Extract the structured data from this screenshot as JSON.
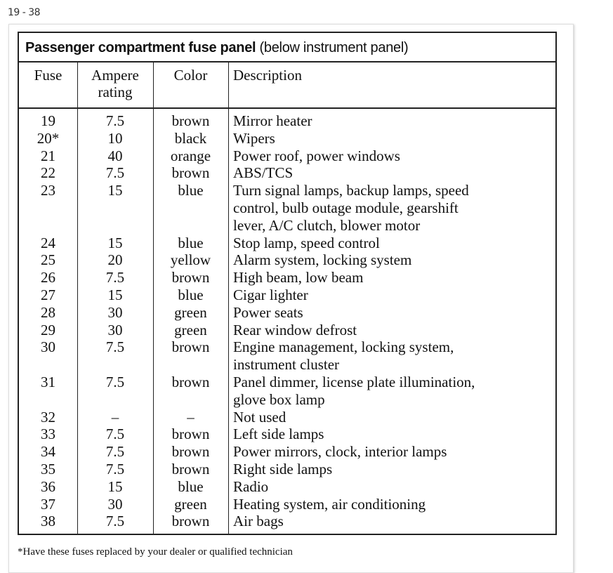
{
  "page_label": "19 - 38",
  "table": {
    "title_bold": "Passenger compartment fuse panel",
    "title_rest": " (below instrument panel)",
    "headers": {
      "fuse": "Fuse",
      "ampere_line1": "Ampere",
      "ampere_line2": "rating",
      "color": "Color",
      "description": "Description"
    },
    "rows": [
      {
        "fuse": "19",
        "amp": "7.5",
        "color": "brown",
        "desc": [
          "Mirror heater"
        ]
      },
      {
        "fuse": "20*",
        "amp": "10",
        "color": "black",
        "desc": [
          "Wipers"
        ]
      },
      {
        "fuse": "21",
        "amp": "40",
        "color": "orange",
        "desc": [
          "Power roof, power windows"
        ]
      },
      {
        "fuse": "22",
        "amp": "7.5",
        "color": "brown",
        "desc": [
          "ABS/TCS"
        ]
      },
      {
        "fuse": "23",
        "amp": "15",
        "color": "blue",
        "desc": [
          "Turn signal lamps, backup lamps, speed",
          "control, bulb outage module, gearshift",
          "lever, A/C clutch, blower motor"
        ]
      },
      {
        "fuse": "24",
        "amp": "15",
        "color": "blue",
        "desc": [
          "Stop lamp, speed control"
        ]
      },
      {
        "fuse": "25",
        "amp": "20",
        "color": "yellow",
        "desc": [
          "Alarm system, locking system"
        ]
      },
      {
        "fuse": "26",
        "amp": "7.5",
        "color": "brown",
        "desc": [
          "High beam, low beam"
        ]
      },
      {
        "fuse": "27",
        "amp": "15",
        "color": "blue",
        "desc": [
          "Cigar lighter"
        ]
      },
      {
        "fuse": "28",
        "amp": "30",
        "color": "green",
        "desc": [
          "Power seats"
        ]
      },
      {
        "fuse": "29",
        "amp": "30",
        "color": "green",
        "desc": [
          "Rear window defrost"
        ]
      },
      {
        "fuse": "30",
        "amp": "7.5",
        "color": "brown",
        "desc": [
          "Engine management, locking system,",
          "instrument cluster"
        ]
      },
      {
        "fuse": "31",
        "amp": "7.5",
        "color": "brown",
        "desc": [
          "Panel dimmer, license plate illumination,",
          "glove box lamp"
        ]
      },
      {
        "fuse": "32",
        "amp": "–",
        "color": "–",
        "desc": [
          "Not used"
        ]
      },
      {
        "fuse": "33",
        "amp": "7.5",
        "color": "brown",
        "desc": [
          "Left side lamps"
        ]
      },
      {
        "fuse": "34",
        "amp": "7.5",
        "color": "brown",
        "desc": [
          "Power mirrors, clock, interior lamps"
        ]
      },
      {
        "fuse": "35",
        "amp": "7.5",
        "color": "brown",
        "desc": [
          "Right side lamps"
        ]
      },
      {
        "fuse": "36",
        "amp": "15",
        "color": "blue",
        "desc": [
          "Radio"
        ]
      },
      {
        "fuse": "37",
        "amp": "30",
        "color": "green",
        "desc": [
          "Heating system, air conditioning"
        ]
      },
      {
        "fuse": "38",
        "amp": "7.5",
        "color": "brown",
        "desc": [
          "Air bags"
        ]
      }
    ]
  },
  "footnote": "*Have these fuses replaced by your dealer or qualified technician"
}
